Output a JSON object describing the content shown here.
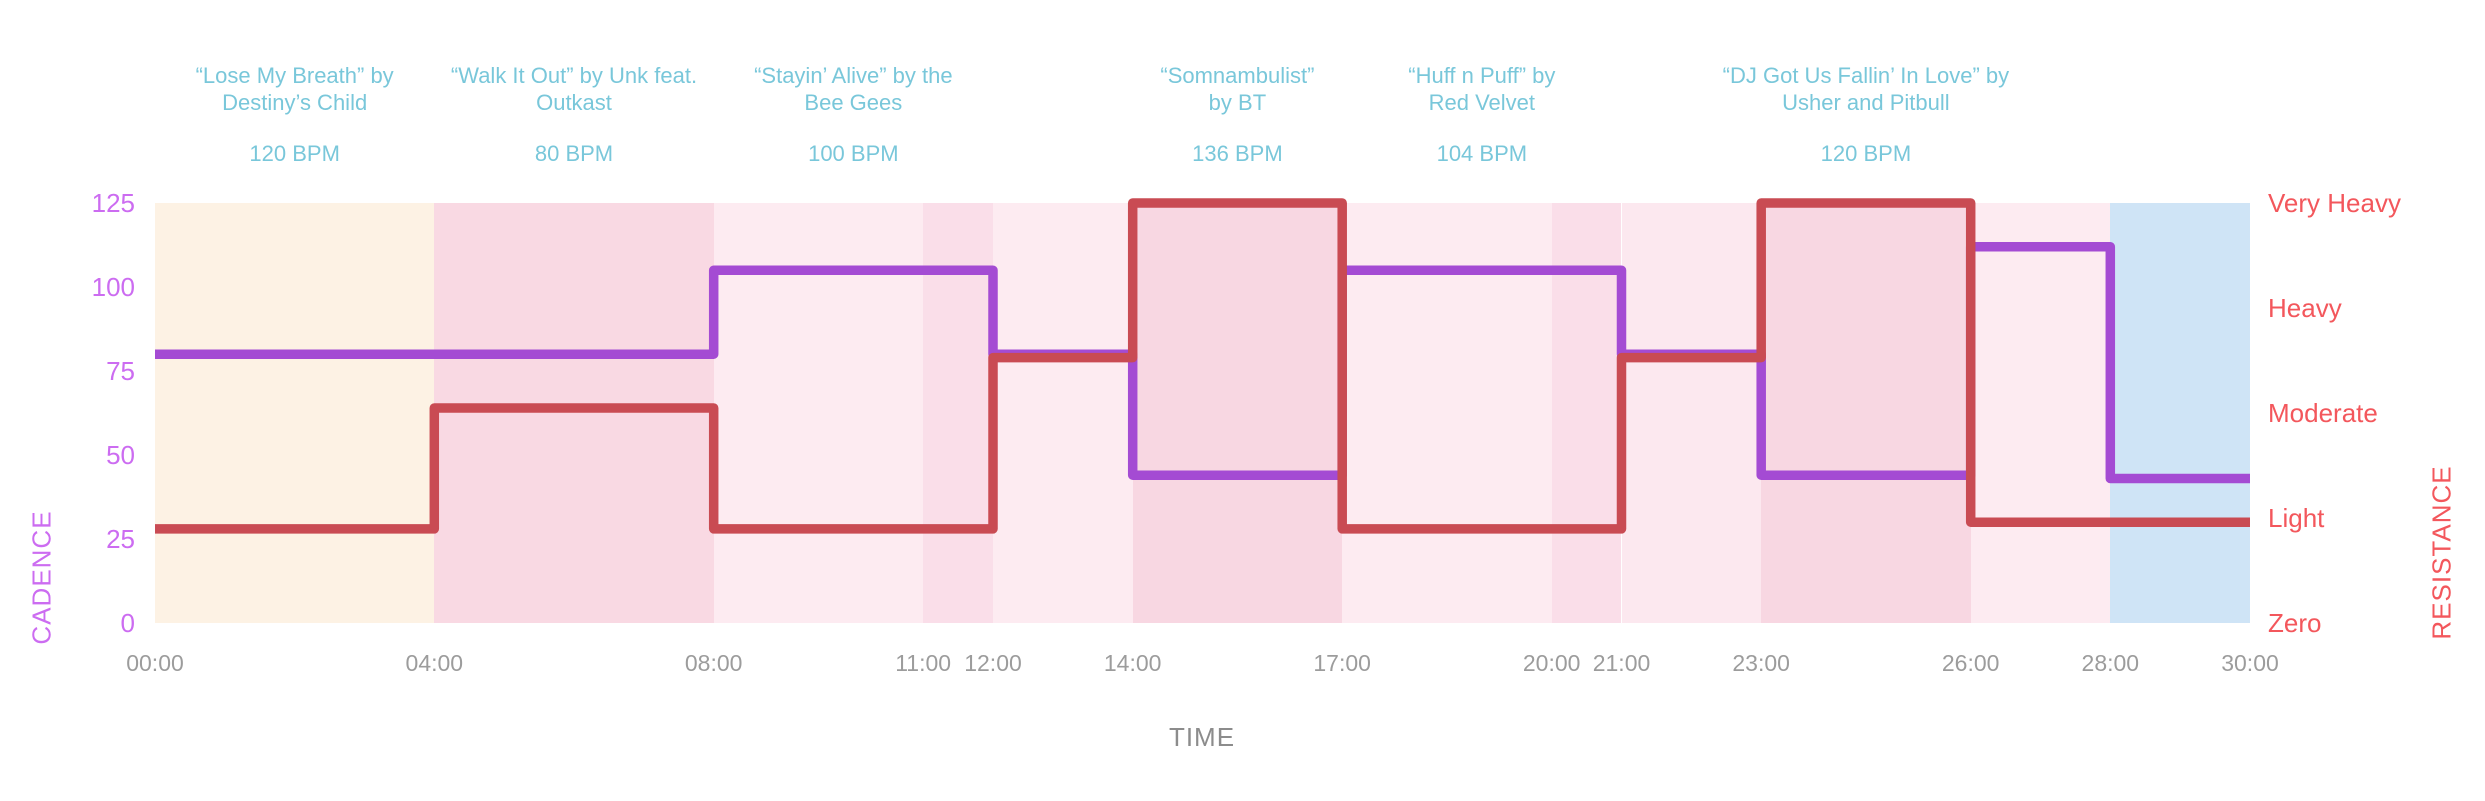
{
  "chart_data": {
    "type": "line",
    "subtype": "step",
    "title": "",
    "x_axis": {
      "label": "TIME",
      "range_minutes": [
        0,
        30
      ],
      "tick_minutes": [
        0,
        4,
        8,
        11,
        12,
        14,
        17,
        20,
        21,
        23,
        26,
        28,
        30
      ],
      "tick_labels": [
        "00:00",
        "04:00",
        "08:00",
        "11:00",
        "12:00",
        "14:00",
        "17:00",
        "20:00",
        "21:00",
        "23:00",
        "26:00",
        "28:00",
        "30:00"
      ],
      "tick_color": "#9c9c9c",
      "title_color": "#8c8c8c"
    },
    "y_left": {
      "label": "CADENCE",
      "range": [
        0,
        125
      ],
      "tick_values": [
        0,
        25,
        50,
        75,
        100,
        125
      ],
      "tick_labels": [
        "0",
        "25",
        "50",
        "75",
        "100",
        "125"
      ],
      "color": "#cc6cf1"
    },
    "y_right": {
      "label": "RESISTANCE",
      "range": [
        0,
        125
      ],
      "tick_values": [
        0,
        31.25,
        62.5,
        93.75,
        125
      ],
      "tick_labels": [
        "Zero",
        "Light",
        "Moderate",
        "Heavy",
        "Very Heavy"
      ],
      "color": "#f3575c"
    },
    "grid": "off",
    "legend": "none",
    "series": [
      {
        "name": "cadence",
        "color": "#a44bd3",
        "steps": [
          {
            "start": 0,
            "end": 8,
            "value": 80
          },
          {
            "start": 8,
            "end": 12,
            "value": 105
          },
          {
            "start": 12,
            "end": 14,
            "value": 80
          },
          {
            "start": 14,
            "end": 17,
            "value": 44
          },
          {
            "start": 17,
            "end": 21,
            "value": 105
          },
          {
            "start": 21,
            "end": 23,
            "value": 80
          },
          {
            "start": 23,
            "end": 26,
            "value": 44
          },
          {
            "start": 26,
            "end": 28,
            "value": 112
          },
          {
            "start": 28,
            "end": 30,
            "value": 43
          }
        ]
      },
      {
        "name": "resistance",
        "color": "#c94b53",
        "steps": [
          {
            "start": 0,
            "end": 4,
            "value": 28
          },
          {
            "start": 4,
            "end": 8,
            "value": 64
          },
          {
            "start": 8,
            "end": 12,
            "value": 28
          },
          {
            "start": 12,
            "end": 14,
            "value": 79
          },
          {
            "start": 14,
            "end": 17,
            "value": 125
          },
          {
            "start": 17,
            "end": 21,
            "value": 28
          },
          {
            "start": 21,
            "end": 23,
            "value": 79
          },
          {
            "start": 23,
            "end": 26,
            "value": 125
          },
          {
            "start": 26,
            "end": 30,
            "value": 30
          }
        ]
      }
    ],
    "songs": [
      {
        "start": 0,
        "end": 4,
        "line1": "“Lose My Breath” by",
        "line2": "Destiny’s Child",
        "bpm": "120 BPM"
      },
      {
        "start": 4,
        "end": 8,
        "line1": "“Walk It Out” by Unk feat.",
        "line2": "Outkast",
        "bpm": "80 BPM"
      },
      {
        "start": 8,
        "end": 12,
        "line1": "“Stayin’ Alive” by the",
        "line2": "Bee Gees",
        "bpm": "100 BPM"
      },
      {
        "start": 14,
        "end": 17,
        "line1": "“Somnambulist”",
        "line2": "by BT",
        "bpm": "136 BPM"
      },
      {
        "start": 17,
        "end": 21,
        "line1": "“Huff n Puff” by",
        "line2": "Red Velvet",
        "bpm": "104 BPM"
      },
      {
        "start": 23,
        "end": 26,
        "line1": "“DJ Got Us Fallin’ In Love” by",
        "line2": "Usher and Pitbull",
        "bpm": "120 BPM"
      }
    ],
    "song_text_color": "#79c7da",
    "bands": [
      {
        "start": 0,
        "end": 4,
        "color": "#fdf2e4",
        "name": "warmup-band"
      },
      {
        "start": 4,
        "end": 8,
        "color": "#f9d9e3",
        "name": "intensity-band"
      },
      {
        "start": 8,
        "end": 11,
        "color": "#fdebf1",
        "name": "light-band"
      },
      {
        "start": 11,
        "end": 12,
        "color": "#fadee9",
        "name": "transition-band"
      },
      {
        "start": 12,
        "end": 14,
        "color": "#fdebf1",
        "name": "light-band"
      },
      {
        "start": 14,
        "end": 17,
        "color": "#f8d7e2",
        "name": "intensity-band"
      },
      {
        "start": 17,
        "end": 20,
        "color": "#fdebf1",
        "name": "light-band"
      },
      {
        "start": 20,
        "end": 21,
        "color": "#fadee9",
        "name": "transition-band"
      },
      {
        "start": 21,
        "end": 23,
        "color": "#fcE8ef",
        "name": "light-band"
      },
      {
        "start": 23,
        "end": 26,
        "color": "#f8d7e2",
        "name": "intensity-band"
      },
      {
        "start": 26,
        "end": 28,
        "color": "#fdebf1",
        "name": "light-band"
      },
      {
        "start": 28,
        "end": 30,
        "color": "#cfe4f6",
        "name": "cooldown-band"
      }
    ]
  }
}
